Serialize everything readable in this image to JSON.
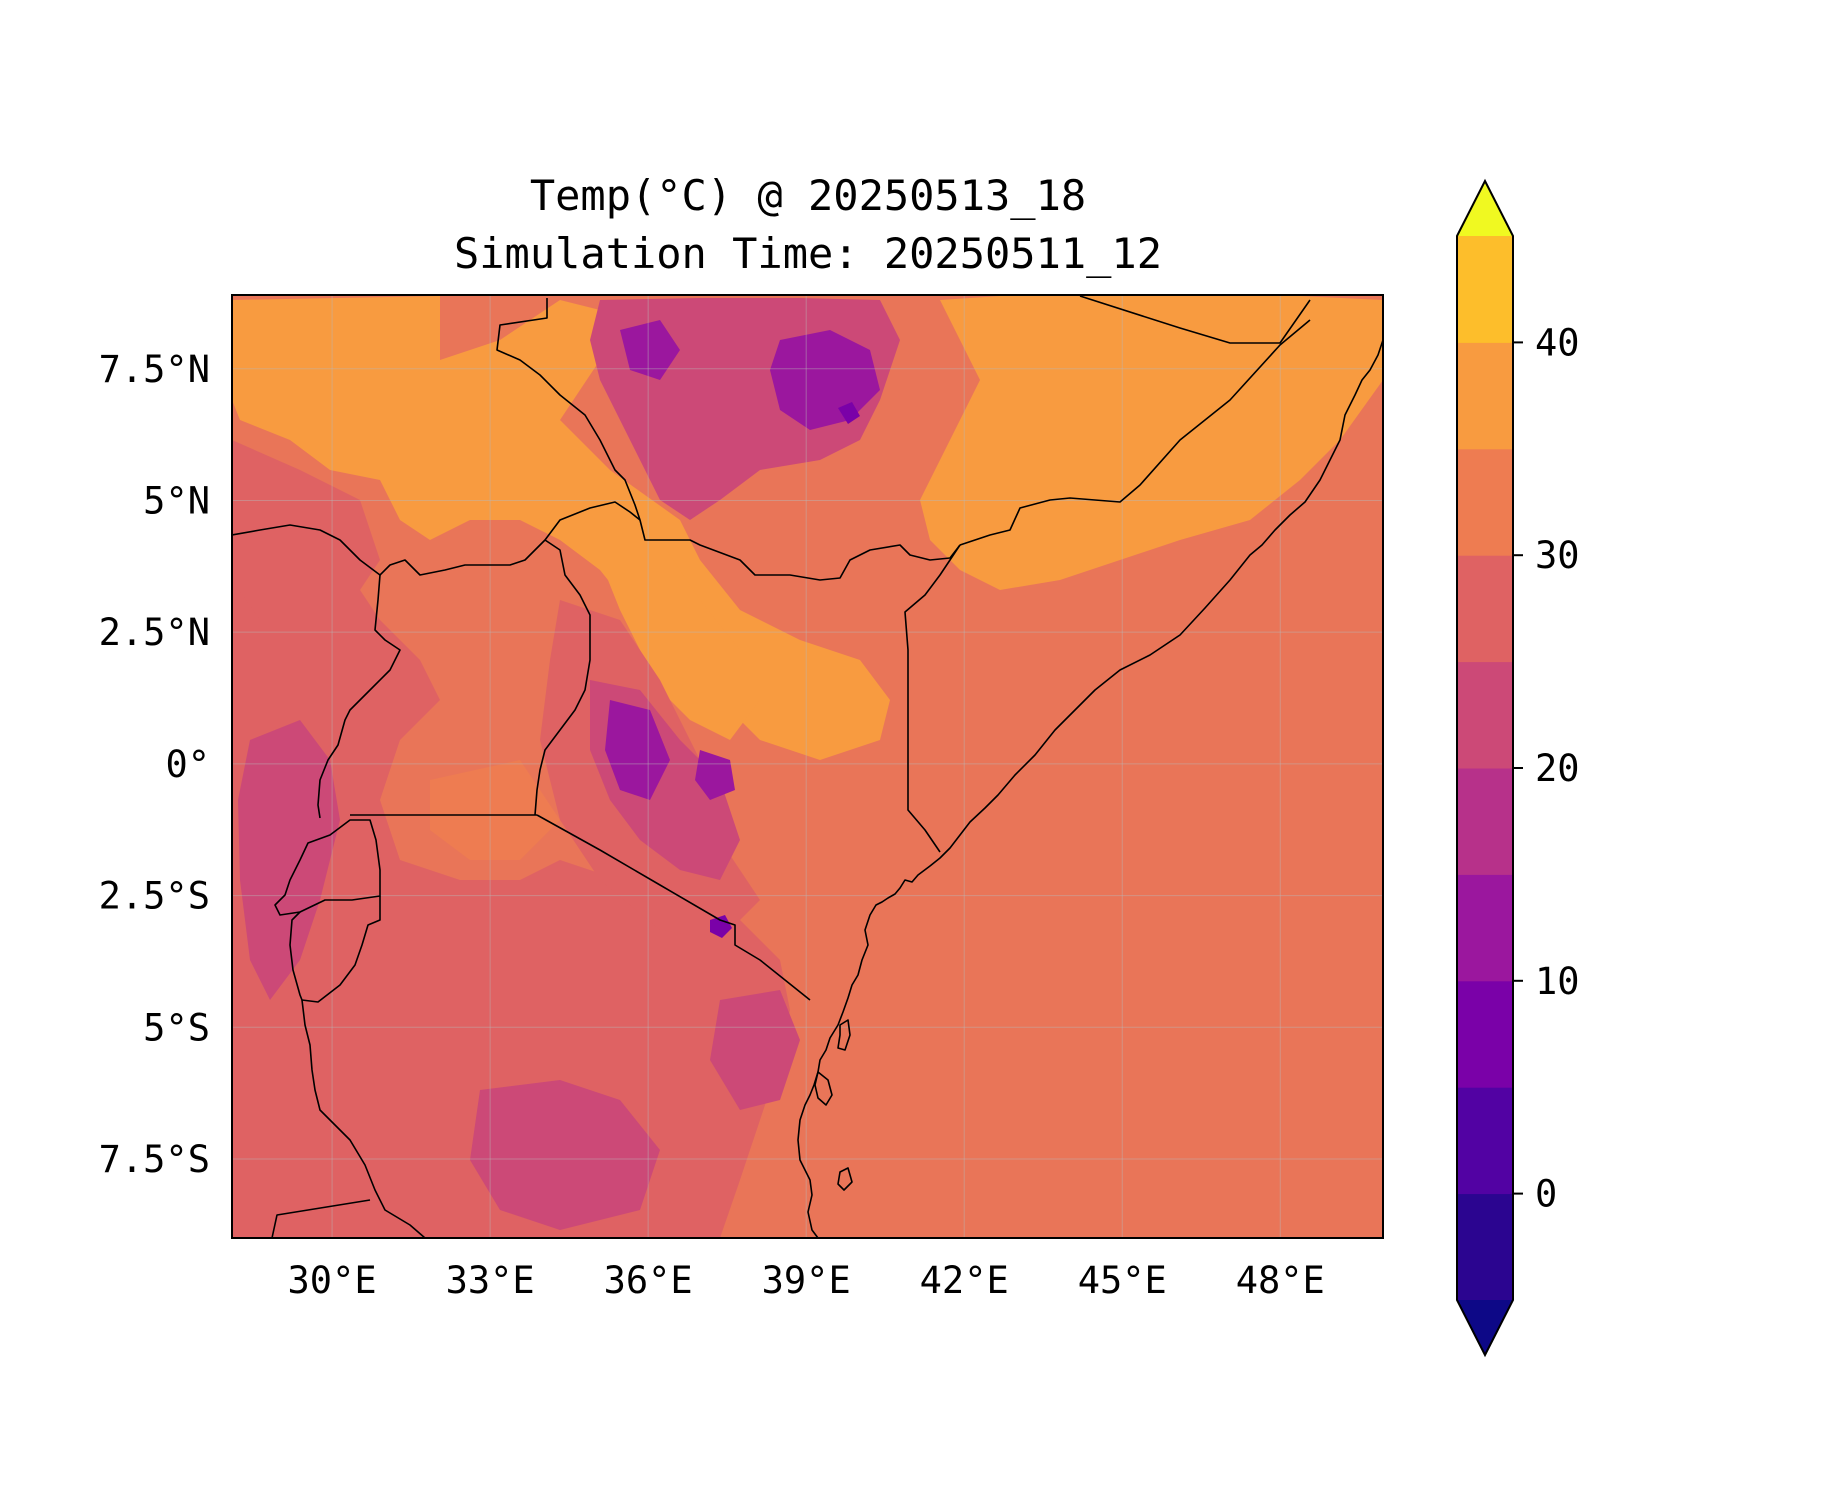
{
  "figure": {
    "title_line1": "Temp(°C) @ 20250513_18",
    "title_line2": "Simulation Time: 20250511_12"
  },
  "map": {
    "extent": {
      "lon_min": 28.1,
      "lon_max": 49.95,
      "lat_min": -9.0,
      "lat_max": 8.9
    },
    "x_ticks": [
      {
        "value": 30,
        "label": "30°E"
      },
      {
        "value": 33,
        "label": "33°E"
      },
      {
        "value": 36,
        "label": "36°E"
      },
      {
        "value": 39,
        "label": "39°E"
      },
      {
        "value": 42,
        "label": "42°E"
      },
      {
        "value": 45,
        "label": "45°E"
      },
      {
        "value": 48,
        "label": "48°E"
      }
    ],
    "y_ticks": [
      {
        "value": 7.5,
        "label": "7.5°N"
      },
      {
        "value": 5,
        "label": "5°N"
      },
      {
        "value": 2.5,
        "label": "2.5°N"
      },
      {
        "value": 0,
        "label": "0°"
      },
      {
        "value": -2.5,
        "label": "2.5°S"
      },
      {
        "value": -5,
        "label": "5°S"
      },
      {
        "value": -7.5,
        "label": "7.5°S"
      }
    ],
    "grid": true,
    "background_color": "#e97558"
  },
  "colorbar": {
    "levels": [
      -5,
      0,
      5,
      10,
      15,
      20,
      25,
      30,
      35,
      40,
      45
    ],
    "colors": [
      "#2b0590",
      "#5202a3",
      "#7a01a8",
      "#9b179e",
      "#b7318a",
      "#cc4977",
      "#df6263",
      "#ee7c51",
      "#f89b40",
      "#fdbe2b",
      "#f6e526"
    ],
    "under_color": "#0d0887",
    "over_color": "#f0f921",
    "extend": "both",
    "ticks": [
      {
        "value": 0,
        "label": "0"
      },
      {
        "value": 10,
        "label": "10"
      },
      {
        "value": 20,
        "label": "20"
      },
      {
        "value": 30,
        "label": "30"
      },
      {
        "value": 40,
        "label": "40"
      }
    ]
  }
}
